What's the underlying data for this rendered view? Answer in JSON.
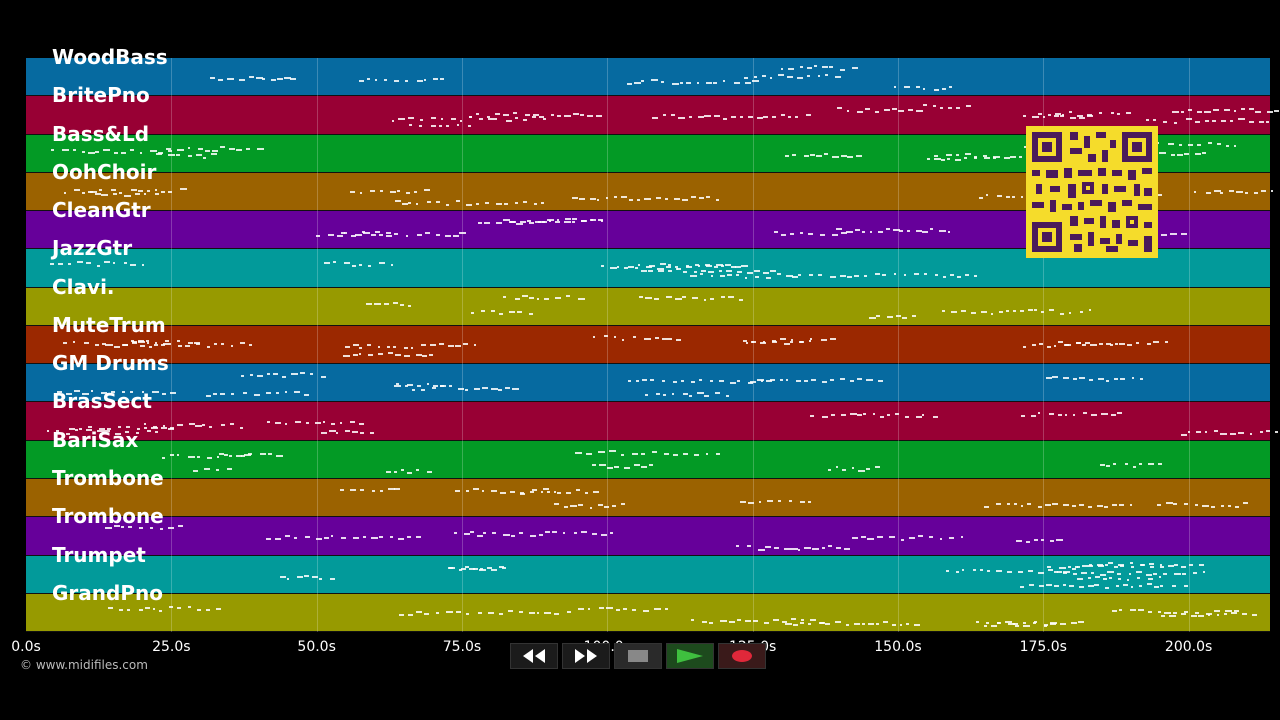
{
  "tracks": [
    {
      "name": "WoodBass",
      "color": "#066aa0"
    },
    {
      "name": "BritePno",
      "color": "#980034"
    },
    {
      "name": "Bass&Ld",
      "color": "#039a25"
    },
    {
      "name": "OohChoir",
      "color": "#9b6200"
    },
    {
      "name": "CleanGtr",
      "color": "#66009a"
    },
    {
      "name": "JazzGtr",
      "color": "#029a9a"
    },
    {
      "name": "Clavi.",
      "color": "#979a00"
    },
    {
      "name": "MuteTrum",
      "color": "#9b2800"
    },
    {
      "name": "GM Drums",
      "color": "#066aa0"
    },
    {
      "name": "BrasSect",
      "color": "#980034"
    },
    {
      "name": "BariSax",
      "color": "#039a25"
    },
    {
      "name": "Trombone",
      "color": "#9b6200"
    },
    {
      "name": "Trombone",
      "color": "#66009a"
    },
    {
      "name": "Trumpet",
      "color": "#029a9a"
    },
    {
      "name": "GrandPno",
      "color": "#979a00"
    }
  ],
  "timeline": {
    "ticks": [
      "0.0s",
      "25.0s",
      "50.0s",
      "75.0s",
      "100.0s",
      "125.0s",
      "150.0s",
      "175.0s",
      "200.0s"
    ],
    "tick_seconds": [
      0,
      25,
      50,
      75,
      100,
      125,
      150,
      175,
      200
    ],
    "max_seconds": 214
  },
  "controls": [
    {
      "name": "rewind-button",
      "icon": "rewind-icon"
    },
    {
      "name": "fast-forward-button",
      "icon": "fast-forward-icon"
    },
    {
      "name": "stop-button",
      "icon": "stop-icon"
    },
    {
      "name": "play-button",
      "icon": "play-icon"
    },
    {
      "name": "record-button",
      "icon": "record-icon"
    }
  ],
  "copyright": "© www.midifiles.com",
  "qr_icon": "qr-code-icon"
}
